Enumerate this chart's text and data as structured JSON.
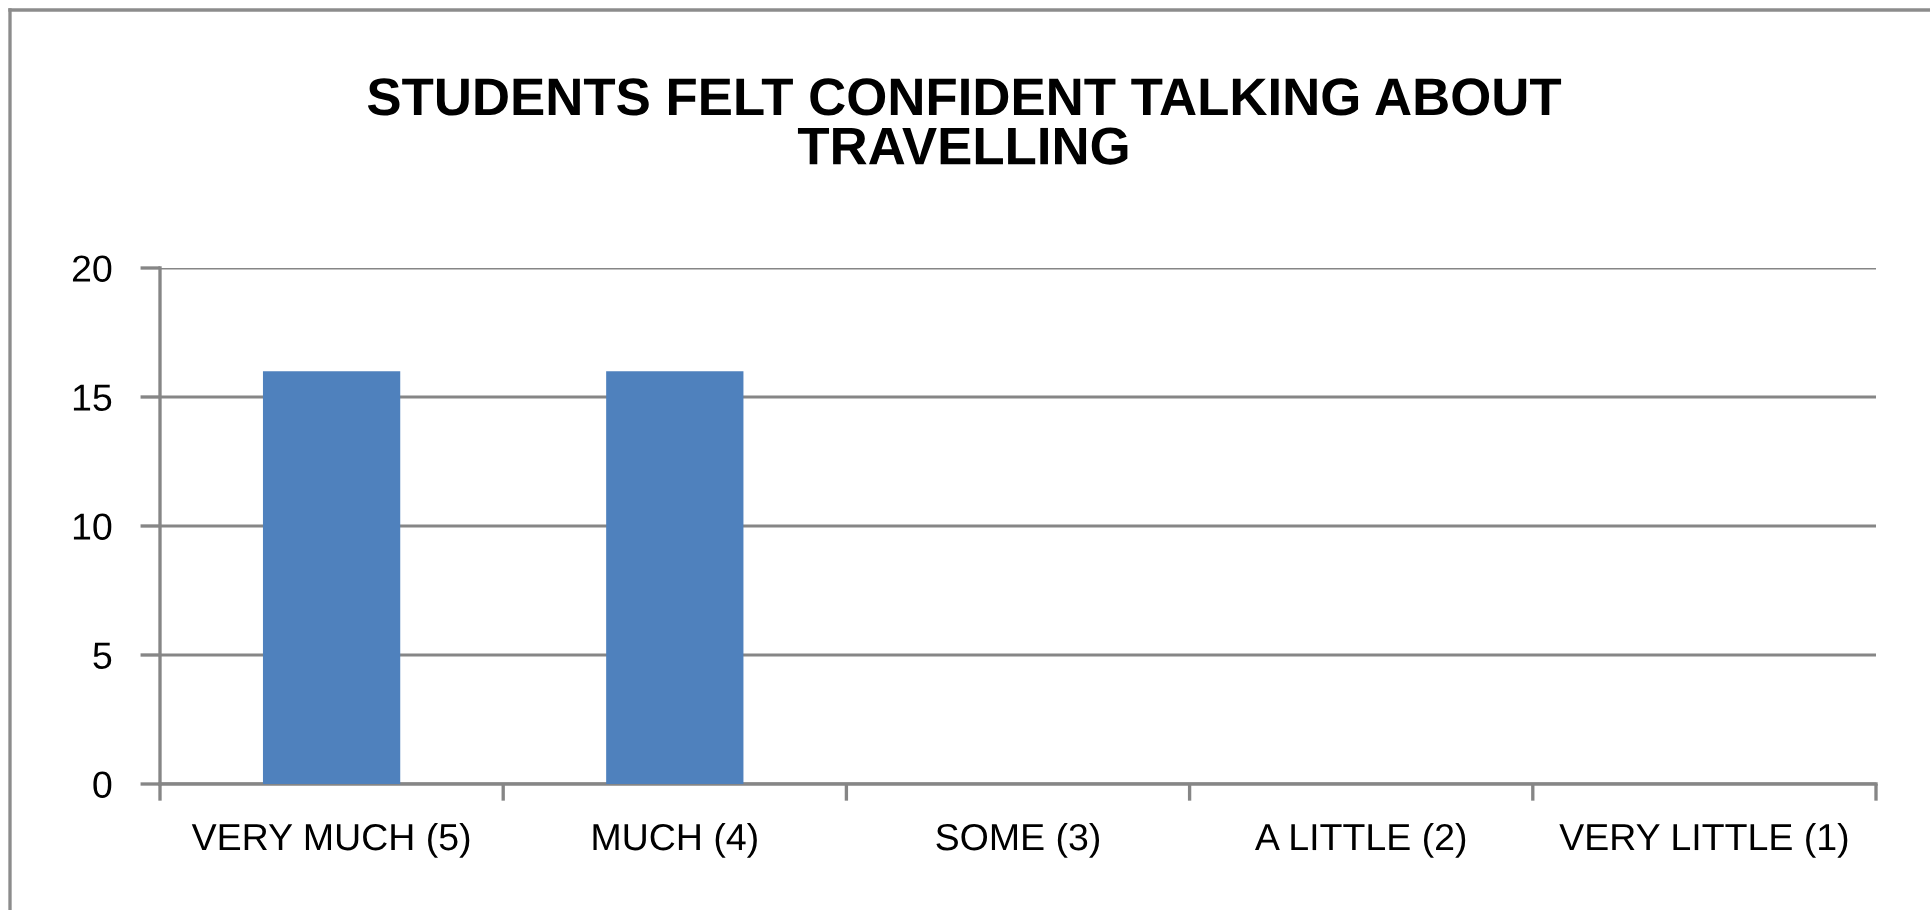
{
  "chart_data": {
    "type": "bar",
    "title": "STUDENTS FELT CONFIDENT TALKING ABOUT\nTRAVELLING",
    "categories": [
      "VERY MUCH (5)",
      "MUCH (4)",
      "SOME (3)",
      "A LITTLE (2)",
      "VERY LITTLE (1)"
    ],
    "values": [
      16,
      16,
      0,
      0,
      0
    ],
    "color": "#4f81bd",
    "ylim": [
      0,
      20
    ],
    "yticks": [
      0,
      5,
      10,
      15,
      20
    ],
    "grid": "y"
  }
}
